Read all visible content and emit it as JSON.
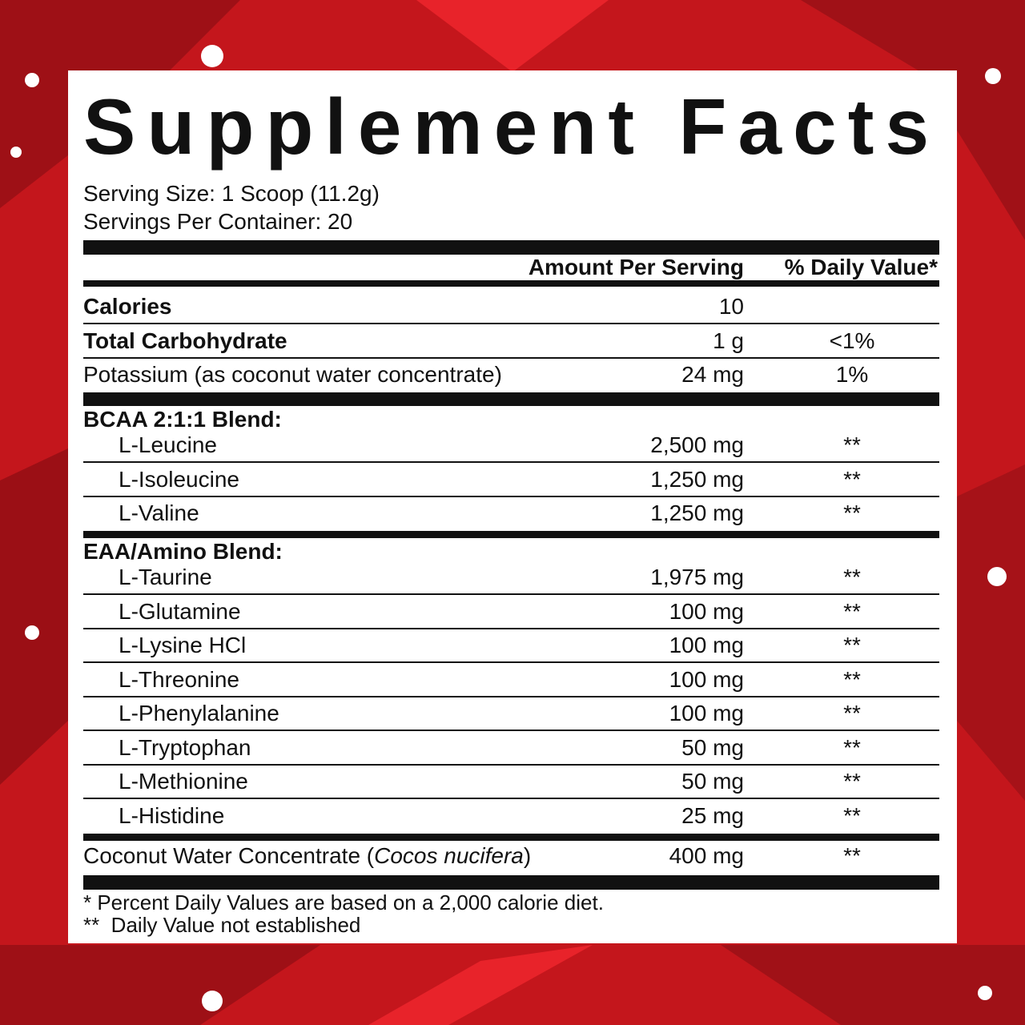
{
  "title": "Supplement Facts",
  "serving_size": "Serving Size: 1 Scoop (11.2g)",
  "servings_per_container": "Servings Per Container: 20",
  "header": {
    "amount": "Amount Per Serving",
    "daily_value": "% Daily Value*"
  },
  "nutrients": [
    {
      "name": "Calories",
      "amount": "10"
    },
    {
      "name": "Total Carbohydrate",
      "amount": "1 g",
      "daily_value": "<1%"
    },
    {
      "name": "Potassium (as coconut water concentrate)",
      "amount": "24 mg",
      "daily_value": "1%"
    }
  ],
  "blends": [
    {
      "name": "BCAA 2:1:1 Blend:",
      "ingredients": [
        {
          "name": "L-Leucine",
          "amount": "2,500 mg",
          "daily_value": "**"
        },
        {
          "name": "L-Isoleucine",
          "amount": "1,250 mg",
          "daily_value": "**"
        },
        {
          "name": "L-Valine",
          "amount": "1,250 mg",
          "daily_value": "**"
        }
      ]
    },
    {
      "name": "EAA/Amino Blend:",
      "ingredients": [
        {
          "name": "L-Taurine",
          "amount": "1,975 mg",
          "daily_value": "**"
        },
        {
          "name": "L-Glutamine",
          "amount": "100 mg",
          "daily_value": "**"
        },
        {
          "name": "L-Lysine HCl",
          "amount": "100 mg",
          "daily_value": "**"
        },
        {
          "name": "L-Threonine",
          "amount": "100 mg",
          "daily_value": "**"
        },
        {
          "name": "L-Phenylalanine",
          "amount": "100 mg",
          "daily_value": "**"
        },
        {
          "name": "L-Tryptophan",
          "amount": "50 mg",
          "daily_value": "**"
        },
        {
          "name": "L-Methionine",
          "amount": "50 mg",
          "daily_value": "**"
        },
        {
          "name": "L-Histidine",
          "amount": "25 mg",
          "daily_value": "**"
        }
      ]
    }
  ],
  "other": {
    "name": [
      "Coconut Water Concentrate (",
      "Cocos nucifera",
      ")"
    ],
    "amount": "400 mg",
    "daily_value": "**"
  },
  "footnotes": [
    "* Percent Daily Values are based on a 2,000 calorie diet.",
    "**  Daily Value not established"
  ]
}
